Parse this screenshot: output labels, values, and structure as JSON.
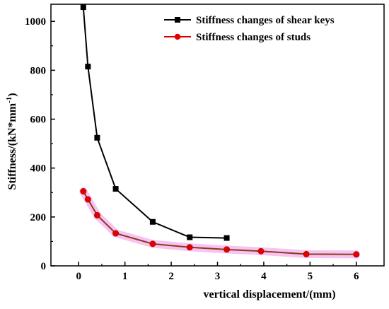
{
  "chart_data": {
    "type": "line",
    "xlabel": "vertical displacement/(mm)",
    "ylabel": "Stiffness/(kN*mm",
    "ylabel_sup": "-1",
    "ylabel_close": ")",
    "xlim": [
      -0.6,
      6.6
    ],
    "ylim": [
      0,
      1070
    ],
    "x_ticks": [
      0,
      1,
      2,
      3,
      4,
      5,
      6
    ],
    "x_tick_labels": [
      "0",
      "1",
      "2",
      "3",
      "4",
      "5",
      "6"
    ],
    "y_ticks": [
      0,
      200,
      400,
      600,
      800,
      1000
    ],
    "y_tick_labels": [
      "0",
      "200",
      "400",
      "600",
      "800",
      "1000"
    ],
    "grid": false,
    "legend_position": "top-right",
    "series": [
      {
        "name": "Stiffness changes of shear keys",
        "color": "#000000",
        "marker": "square",
        "x": [
          0.1,
          0.2,
          0.4,
          0.8,
          1.6,
          2.4,
          3.2
        ],
        "y": [
          1058,
          815,
          524,
          315,
          180,
          117,
          114
        ]
      },
      {
        "name": "Stiffness changes of studs",
        "color": "#e00000",
        "line_color": "#8b3a1a",
        "highlight_color": "#f6b8f0",
        "marker": "circle",
        "x": [
          0.1,
          0.2,
          0.4,
          0.8,
          1.6,
          2.4,
          3.2,
          3.94,
          4.92,
          6.0
        ],
        "y": [
          305,
          272,
          207,
          133,
          90,
          76,
          67,
          60,
          48,
          47
        ]
      }
    ]
  }
}
